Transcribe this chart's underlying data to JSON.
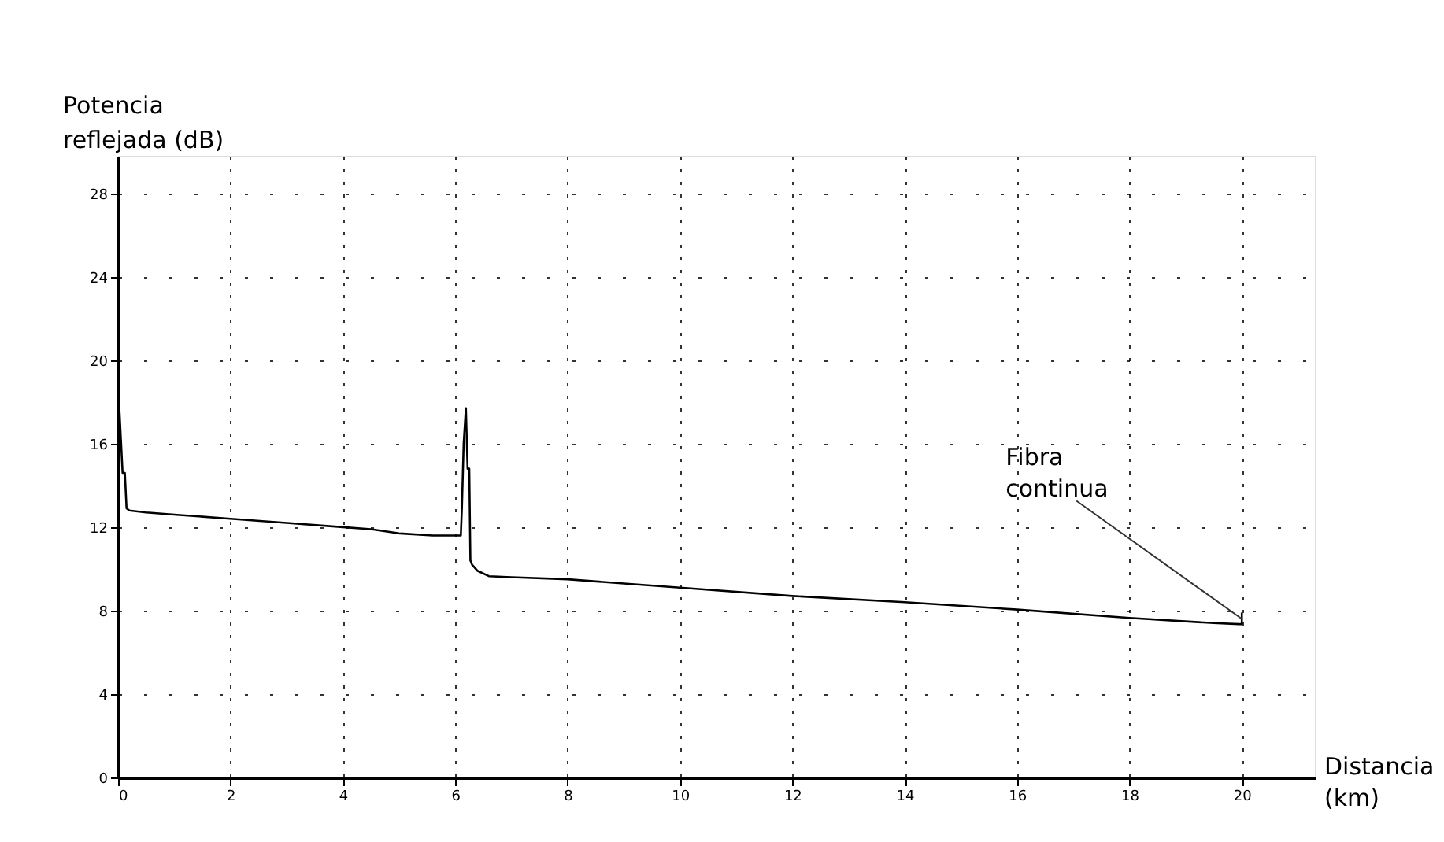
{
  "chart_data": {
    "type": "line",
    "xlabel": "Distancia (km)",
    "ylabel": "Potencia reflejada (dB)",
    "series": [
      {
        "color": "#000000",
        "x": [
          0,
          0.02,
          0.05,
          0.08,
          0.12,
          0.15,
          0.2,
          0.5,
          1,
          2,
          3,
          4,
          4.5,
          5,
          5.6,
          6.1,
          6.12,
          6.15,
          6.19,
          6.22,
          6.25,
          6.27,
          6.3,
          6.4,
          6.6,
          7,
          8,
          10,
          12,
          14,
          16,
          18,
          19.5,
          19.95,
          20,
          20
        ],
        "values": [
          19.3,
          17.8,
          16.2,
          14.6,
          14.6,
          12.9,
          12.8,
          12.7,
          12.6,
          12.4,
          12.2,
          12.0,
          11.9,
          11.7,
          11.6,
          11.6,
          13.0,
          16.0,
          17.7,
          14.8,
          14.8,
          10.4,
          10.2,
          9.9,
          9.65,
          9.6,
          9.5,
          9.1,
          8.7,
          8.4,
          8.05,
          7.65,
          7.4,
          7.35,
          7.35,
          7.9
        ]
      }
    ],
    "annotations": [
      {
        "text": "Fibra continua",
        "x": 20,
        "y": 7.6
      }
    ],
    "xlim": [
      0,
      21.3
    ],
    "xticks": [
      0,
      2,
      4,
      6,
      8,
      10,
      12,
      14,
      16,
      18,
      20
    ],
    "ylim": [
      0,
      29.8
    ],
    "yticks": [
      0,
      4,
      8,
      12,
      16,
      20,
      24,
      28
    ],
    "grid": true,
    "marker": "none",
    "line_style": "solid"
  }
}
